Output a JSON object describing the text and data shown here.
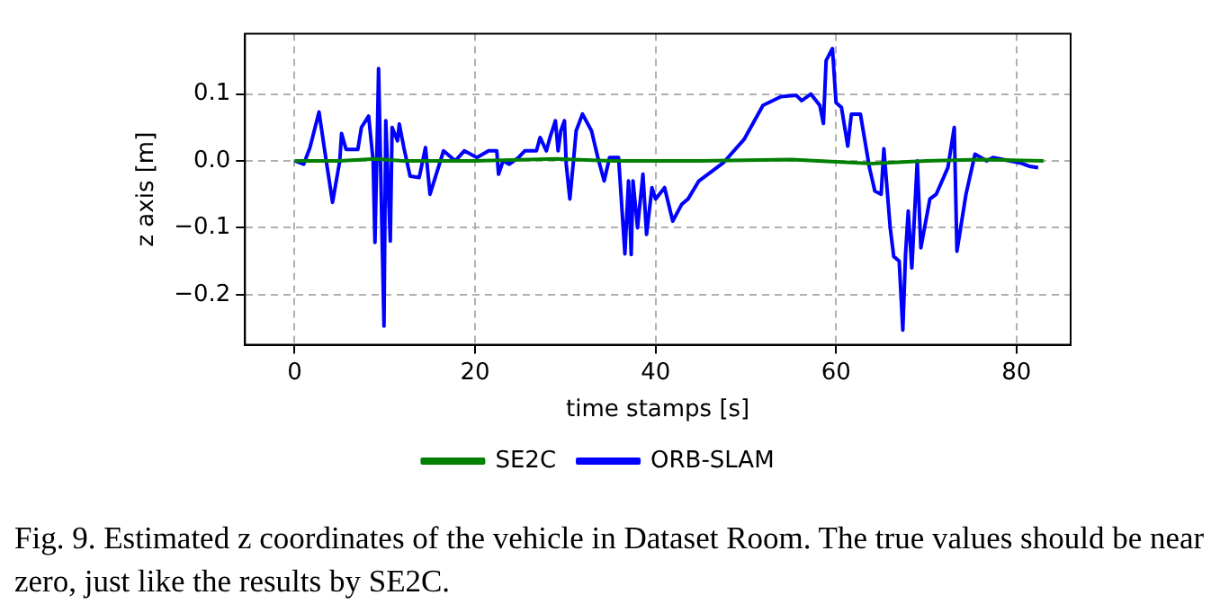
{
  "chart_data": {
    "type": "line",
    "xlabel": "time stamps [s]",
    "ylabel": "z axis [m]",
    "xlim": [
      -5.5,
      86
    ],
    "ylim": [
      -0.275,
      0.19
    ],
    "xticks": [
      0,
      20,
      40,
      60,
      80
    ],
    "yticks": [
      {
        "value": -0.2,
        "label": "−0.2"
      },
      {
        "value": -0.1,
        "label": "−0.1"
      },
      {
        "value": 0,
        "label": "0.0"
      },
      {
        "value": 0.1,
        "label": "0.1"
      }
    ],
    "grid": true,
    "legend": "bottom",
    "marker": "none",
    "line_style": "solid",
    "series": [
      {
        "name": "SE2C",
        "color": "#008000",
        "x": [
          0,
          5,
          9,
          12,
          20,
          29,
          35,
          45,
          55,
          64,
          70,
          76,
          83
        ],
        "values": [
          0,
          0,
          0.003,
          0,
          0,
          0.003,
          0,
          0,
          0.002,
          -0.004,
          0,
          0.002,
          0
        ]
      },
      {
        "name": "ORB-SLAM",
        "color": "#0000ff",
        "x": [
          0,
          1,
          1.7,
          2.7,
          3.5,
          4.2,
          5,
          5.2,
          5.7,
          7,
          7.4,
          8.2,
          8.7,
          8.9,
          9.2,
          9.3,
          9.9,
          10.1,
          10.6,
          10.8,
          11.4,
          11.6,
          12.1,
          12.8,
          13.8,
          14.5,
          15,
          16.5,
          17.8,
          18.8,
          20.2,
          21.5,
          22.4,
          22.6,
          23.1,
          23.8,
          24.8,
          25.5,
          26.8,
          27.2,
          27.9,
          28.3,
          28.9,
          29.2,
          29.5,
          29.9,
          30.1,
          30.5,
          30.9,
          31.2,
          31.9,
          32.9,
          33.6,
          34.3,
          34.9,
          35.9,
          36.6,
          37,
          37.3,
          37.5,
          38,
          38.6,
          39,
          39.6,
          40,
          41,
          41.9,
          42.9,
          43.6,
          44.8,
          45.8,
          47.5,
          49.8,
          51.9,
          53.9,
          55.6,
          56.2,
          57.2,
          58.2,
          58.6,
          58.9,
          59.6,
          60,
          60.6,
          61.3,
          61.7,
          62.7,
          63.7,
          64.3,
          65,
          65.3,
          66,
          66.4,
          67,
          67.4,
          67.7,
          68,
          68.4,
          69,
          69.4,
          70.4,
          71.1,
          72.4,
          73.1,
          73.4,
          74.4,
          75.4,
          76.7,
          77.4,
          80.4,
          81.4,
          82.4
        ],
        "values": [
          0,
          -0.005,
          0.02,
          0.073,
          0,
          -0.062,
          0,
          0.041,
          0.017,
          0.017,
          0.05,
          0.067,
          0,
          -0.122,
          0.065,
          0.138,
          -0.247,
          0.06,
          -0.12,
          0.05,
          0.03,
          0.055,
          0.02,
          -0.023,
          -0.025,
          0.02,
          -0.05,
          0.015,
          0,
          0.015,
          0.005,
          0.015,
          0.015,
          -0.02,
          0,
          -0.005,
          0.005,
          0.015,
          0.015,
          0.035,
          0.015,
          0.035,
          0.06,
          0.015,
          0.045,
          0.06,
          -0.005,
          -0.057,
          0,
          0.045,
          0.07,
          0.045,
          0.005,
          -0.03,
          0.005,
          0.005,
          -0.139,
          -0.03,
          -0.14,
          -0.03,
          -0.1,
          -0.02,
          -0.11,
          -0.04,
          -0.057,
          -0.04,
          -0.09,
          -0.065,
          -0.057,
          -0.03,
          -0.02,
          -0.003,
          0.032,
          0.083,
          0.096,
          0.098,
          0.09,
          0.1,
          0.083,
          0.056,
          0.15,
          0.168,
          0.087,
          0.08,
          0.022,
          0.07,
          0.07,
          -0.01,
          -0.045,
          -0.05,
          0.018,
          -0.1,
          -0.143,
          -0.15,
          -0.253,
          -0.14,
          -0.075,
          -0.16,
          0,
          -0.13,
          -0.057,
          -0.05,
          -0.01,
          0.05,
          -0.135,
          -0.05,
          0.01,
          0,
          0.005,
          -0.003,
          -0.008,
          -0.01
        ]
      }
    ],
    "annotations": [
      "Fig. 9.   Estimated z coordinates of the vehicle in Dataset Room. The true values should be near zero, just like the results by SE2C."
    ]
  }
}
